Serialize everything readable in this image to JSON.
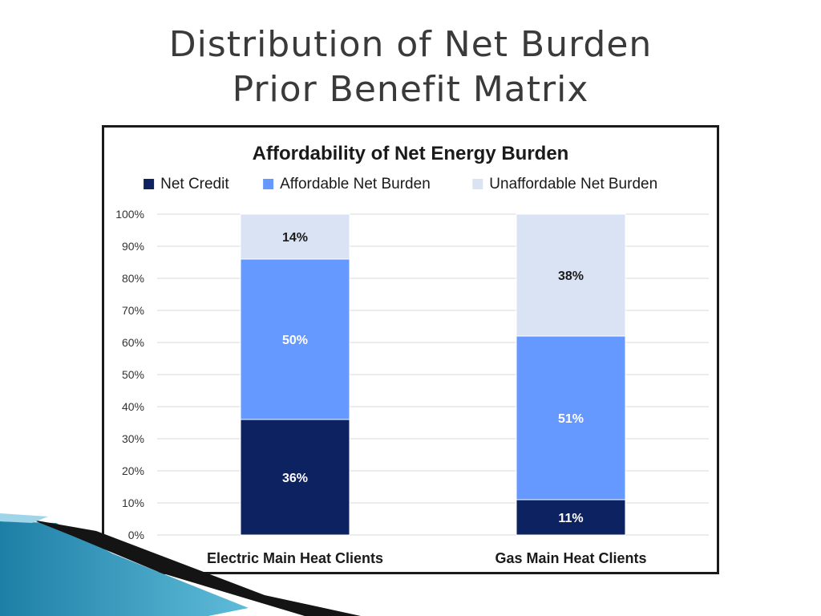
{
  "slide": {
    "title_line1": "Distribution of Net Burden",
    "title_line2": "Prior Benefit Matrix"
  },
  "chart_data": {
    "type": "bar",
    "stacked": true,
    "title": "Affordability of Net Energy Burden",
    "categories": [
      "Electric Main Heat Clients",
      "Gas Main Heat Clients"
    ],
    "series": [
      {
        "name": "Net Credit",
        "values": [
          36,
          11
        ],
        "labels": [
          "36%",
          "11%"
        ],
        "color": "#0d2260",
        "label_color": "#ffffff"
      },
      {
        "name": "Affordable Net Burden",
        "values": [
          50,
          51
        ],
        "labels": [
          "50%",
          "51%"
        ],
        "color": "#6699ff",
        "label_color": "#ffffff"
      },
      {
        "name": "Unaffordable Net Burden",
        "values": [
          14,
          38
        ],
        "labels": [
          "14%",
          "38%"
        ],
        "color": "#dae3f3",
        "label_color": "#1a1a1a"
      }
    ],
    "yticks": [
      "0%",
      "10%",
      "20%",
      "30%",
      "40%",
      "50%",
      "60%",
      "70%",
      "80%",
      "90%",
      "100%"
    ],
    "ylim": [
      0,
      100
    ],
    "grid": true,
    "legend_position": "top"
  }
}
